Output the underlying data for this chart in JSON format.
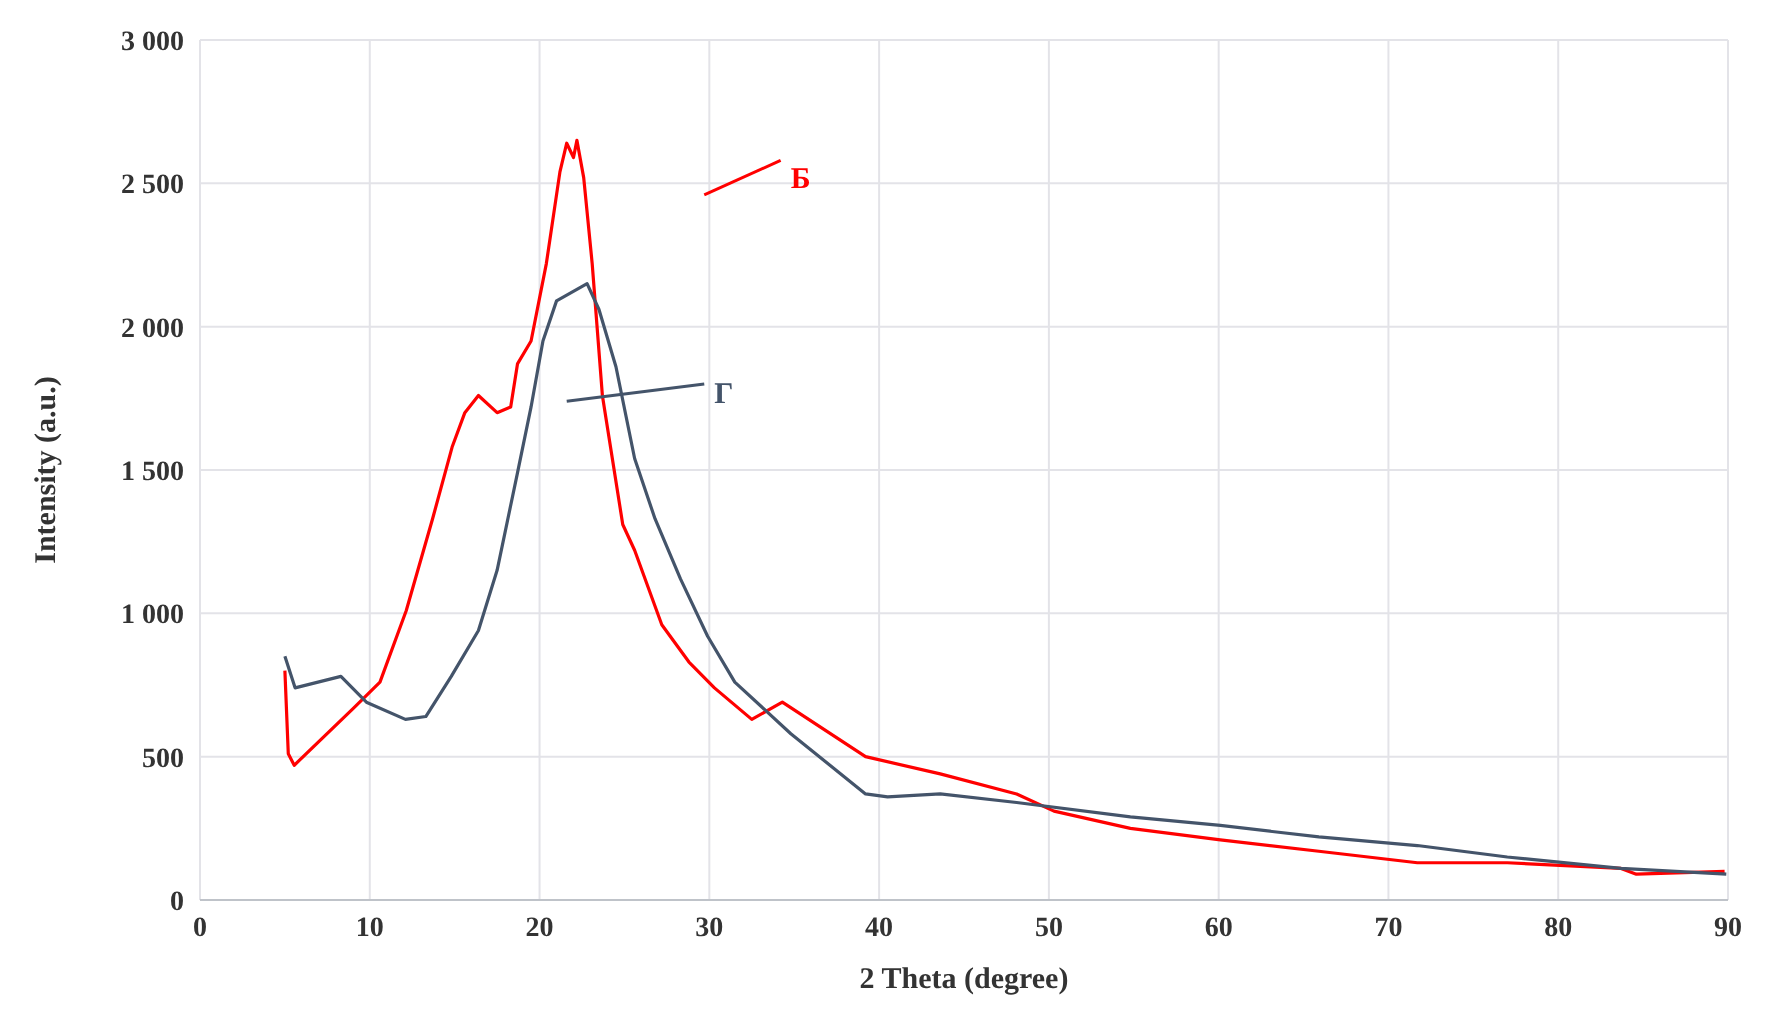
{
  "chart_data": {
    "type": "line",
    "xlabel": "2 Theta (degree)",
    "ylabel": "Intensity (a.u.)",
    "xlim": [
      0,
      90
    ],
    "xticks": [
      0,
      10,
      20,
      30,
      40,
      50,
      60,
      70,
      80,
      90
    ],
    "ylim": [
      0,
      3000
    ],
    "yticks": [
      {
        "value": 0,
        "label": "0"
      },
      {
        "value": 500,
        "label": "500"
      },
      {
        "value": 1000,
        "label": "1 000"
      },
      {
        "value": 1500,
        "label": "1 500"
      },
      {
        "value": 2000,
        "label": "2 000"
      },
      {
        "value": 2500,
        "label": "2 500"
      },
      {
        "value": 3000,
        "label": "3 000"
      }
    ],
    "grid": true,
    "legend": "top",
    "marker": "none",
    "line_style": "solid",
    "series": [
      {
        "name": "Б",
        "color": "#ff0000",
        "x": [
          5.0,
          5.2,
          5.55,
          9.06,
          10.6,
          12.15,
          13.7,
          14.85,
          15.6,
          16.4,
          17.5,
          18.3,
          18.7,
          19.5,
          20.4,
          21.2,
          21.6,
          22.0,
          22.2,
          22.6,
          23.1,
          23.7,
          24.9,
          25.6,
          27.2,
          28.8,
          30.3,
          32.5,
          34.3,
          39.2,
          43.6,
          48.1,
          50.3,
          54.8,
          60.1,
          65.9,
          71.7,
          77.0,
          83.7,
          84.6,
          89.8
        ],
        "values": [
          800,
          510,
          470,
          670,
          760,
          1010,
          1330,
          1580,
          1700,
          1760,
          1700,
          1720,
          1870,
          1950,
          2220,
          2540,
          2640,
          2590,
          2650,
          2520,
          2220,
          1760,
          1310,
          1220,
          960,
          830,
          740,
          630,
          690,
          500,
          440,
          370,
          310,
          250,
          210,
          170,
          130,
          130,
          110,
          90,
          100
        ]
      },
      {
        "name": "Г",
        "color": "#44546a",
        "x": [
          5.0,
          5.6,
          8.3,
          9.8,
          12.1,
          13.3,
          14.8,
          16.4,
          17.5,
          18.7,
          19.5,
          20.2,
          21.0,
          22.2,
          22.8,
          23.5,
          24.5,
          25.6,
          26.8,
          28.3,
          29.9,
          31.5,
          34.8,
          39.2,
          40.5,
          43.6,
          48.1,
          54.8,
          60.1,
          65.9,
          71.7,
          77.0,
          83.7,
          89.9
        ],
        "values": [
          850,
          740,
          780,
          690,
          630,
          640,
          780,
          940,
          1150,
          1490,
          1720,
          1950,
          2090,
          2130,
          2150,
          2060,
          1860,
          1540,
          1330,
          1120,
          920,
          760,
          580,
          370,
          360,
          370,
          340,
          290,
          260,
          220,
          190,
          150,
          110,
          90
        ]
      }
    ]
  }
}
